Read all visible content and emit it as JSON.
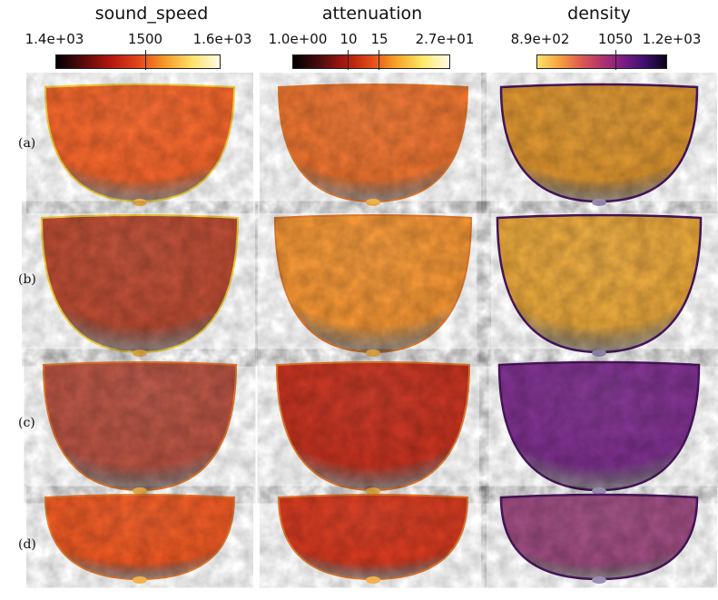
{
  "colorbars": [
    {
      "title": "sound_speed",
      "min_label": "1.4e+03",
      "mid_label": "1500",
      "max_label": "1.6e+03",
      "stops": [
        "#000004",
        "#5a0a0a",
        "#b3170f",
        "#e2441a",
        "#f79a2a",
        "#fde36a",
        "#fffbe6"
      ]
    },
    {
      "title": "attenuation",
      "min_label": "1.0e+00",
      "mid_label_1": "10",
      "mid_label_2": "15",
      "max_label": "2.7e+01",
      "stops": [
        "#000000",
        "#4a0c0c",
        "#a8190f",
        "#e24b17",
        "#f8a627",
        "#fdea6b",
        "#fffbe5"
      ]
    },
    {
      "title": "density",
      "min_label": "8.9e+02",
      "mid_label": "1050",
      "max_label": "1.2e+03",
      "stops": [
        "#fbe36a",
        "#f6a241",
        "#de5c4d",
        "#b0346c",
        "#7a1d86",
        "#3e0f6e",
        "#060418"
      ]
    }
  ],
  "rows": [
    {
      "label": "(a)"
    },
    {
      "label": "(b)"
    },
    {
      "label": "(c)"
    },
    {
      "label": "(d)"
    }
  ],
  "volumes": [
    [
      "#f1642a",
      "#e9722f",
      "#d9922e"
    ],
    [
      "#b84a32",
      "#f09333",
      "#e6a53a"
    ],
    [
      "#b55141",
      "#c2311e",
      "#7c2f8c"
    ],
    [
      "#ea5722",
      "#d2381e",
      "#9b4a7e"
    ]
  ]
}
